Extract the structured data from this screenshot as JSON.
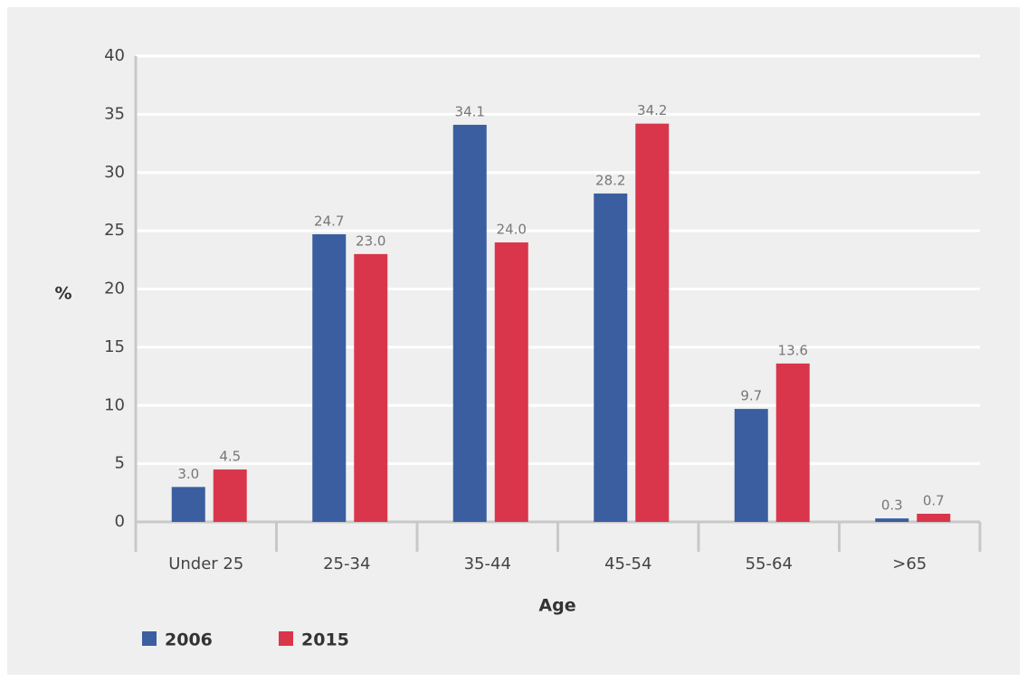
{
  "chart_data": {
    "type": "bar",
    "categories": [
      "Under 25",
      "25-34",
      "35-44",
      "45-54",
      "55-64",
      ">65"
    ],
    "series": [
      {
        "name": "2006",
        "color": "#3a5ea0",
        "values": [
          3.0,
          24.7,
          34.1,
          28.2,
          9.7,
          0.3
        ],
        "value_labels": [
          "3.0",
          "24.7",
          "34.1",
          "28.2",
          "9.7",
          "0.3"
        ]
      },
      {
        "name": "2015",
        "color": "#d9364b",
        "values": [
          4.5,
          23.0,
          24.0,
          34.2,
          13.6,
          0.7
        ],
        "value_labels": [
          "4.5",
          "23.0",
          "24.0",
          "34.2",
          "13.6",
          "0.7"
        ]
      }
    ],
    "xlabel": "Age",
    "ylabel": "%",
    "ylim": [
      0,
      40
    ],
    "yticks": [
      0,
      5,
      10,
      15,
      20,
      25,
      30,
      35,
      40
    ],
    "grid": true,
    "legend": "bottom-left"
  }
}
